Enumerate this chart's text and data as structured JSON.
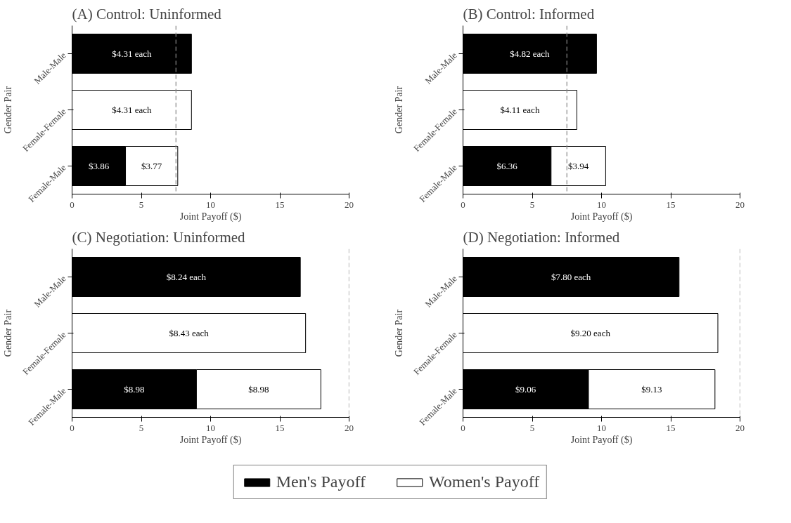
{
  "chart_data": [
    {
      "type": "bar",
      "title": "(A) Control: Uninformed",
      "orientation": "horizontal",
      "stacked": true,
      "categories": [
        "Male-Male",
        "Female-Female",
        "Female-Male"
      ],
      "xlabel": "Joint Payoff ($)",
      "ylabel": "Gender Pair",
      "xlim": [
        0,
        20
      ],
      "xticks": [
        0,
        5,
        10,
        15,
        20
      ],
      "legend": "bottom",
      "series": [
        {
          "name": "Men's Payoff",
          "color": "#000000",
          "values": [
            8.62,
            null,
            3.86
          ],
          "value_labels": [
            null,
            null,
            "$3.86"
          ]
        },
        {
          "name": "Women's Payoff",
          "color": "#ffffff",
          "values": [
            null,
            8.62,
            3.77
          ],
          "value_labels": [
            null,
            null,
            "$3.77"
          ]
        }
      ],
      "annotations": [
        "$4.31 each",
        "$4.31 each"
      ],
      "ref_lines": [
        {
          "axis": "x",
          "value": 7.5,
          "line_style": "dashed",
          "color": "#888888"
        }
      ]
    },
    {
      "type": "bar",
      "title": "(B) Control: Informed",
      "orientation": "horizontal",
      "stacked": true,
      "categories": [
        "Male-Male",
        "Female-Female",
        "Female-Male"
      ],
      "xlabel": "Joint Payoff ($)",
      "ylabel": "Gender Pair",
      "xlim": [
        0,
        20
      ],
      "xticks": [
        0,
        5,
        10,
        15,
        20
      ],
      "series": [
        {
          "color": "#000000",
          "values": [
            9.64,
            null,
            6.36
          ],
          "value_labels": [
            null,
            null,
            "$6.36"
          ]
        },
        {
          "color": "#ffffff",
          "values": [
            null,
            8.22,
            3.94
          ],
          "value_labels": [
            null,
            null,
            "$3.94"
          ]
        }
      ],
      "annotations": [
        "$4.82 each",
        "$4.11 each"
      ],
      "ref_lines": [
        {
          "axis": "x",
          "value": 7.5,
          "line_style": "dashed",
          "color": "#888888"
        }
      ]
    },
    {
      "type": "bar",
      "title": "(C) Negotiation: Uninformed",
      "orientation": "horizontal",
      "stacked": true,
      "categories": [
        "Male-Male",
        "Female-Female",
        "Female-Male"
      ],
      "xlabel": "Joint Payoff ($)",
      "ylabel": "Gender Pair",
      "xlim": [
        0,
        20
      ],
      "xticks": [
        0,
        5,
        10,
        15,
        20
      ],
      "series": [
        {
          "color": "#000000",
          "values": [
            16.48,
            null,
            8.98
          ],
          "value_labels": [
            null,
            null,
            "$8.98"
          ]
        },
        {
          "color": "#ffffff",
          "values": [
            null,
            16.86,
            8.98
          ],
          "value_labels": [
            null,
            null,
            "$8.98"
          ]
        }
      ],
      "annotations": [
        "$8.24 each",
        "$8.43 each"
      ],
      "ref_lines": [
        {
          "axis": "x",
          "value": 20,
          "line_style": "dashed",
          "color": "#888888"
        }
      ]
    },
    {
      "type": "bar",
      "title": "(D) Negotiation: Informed",
      "orientation": "horizontal",
      "stacked": true,
      "categories": [
        "Male-Male",
        "Female-Female",
        "Female-Male"
      ],
      "xlabel": "Joint Payoff ($)",
      "ylabel": "Gender Pair",
      "xlim": [
        0,
        20
      ],
      "xticks": [
        0,
        5,
        10,
        15,
        20
      ],
      "series": [
        {
          "color": "#000000",
          "values": [
            15.6,
            null,
            9.06
          ],
          "value_labels": [
            null,
            null,
            "$9.06"
          ]
        },
        {
          "color": "#ffffff",
          "values": [
            null,
            18.4,
            9.13
          ],
          "value_labels": [
            null,
            null,
            "$9.13"
          ]
        }
      ],
      "annotations": [
        "$7.80 each",
        "$9.20 each"
      ],
      "ref_lines": [
        {
          "axis": "x",
          "value": 20,
          "line_style": "dashed",
          "color": "#888888"
        }
      ]
    }
  ]
}
